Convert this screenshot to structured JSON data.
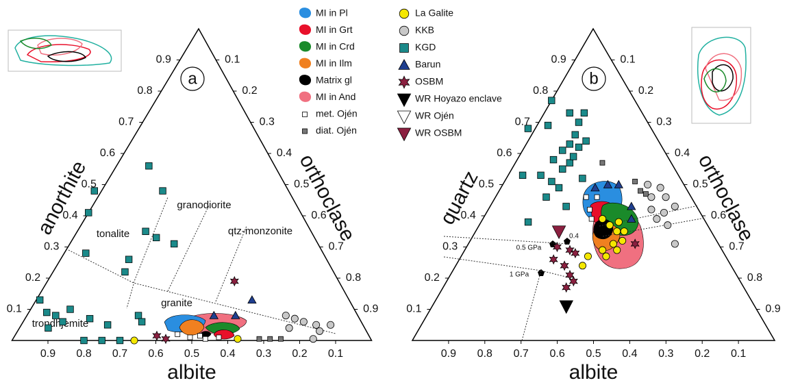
{
  "legend": [
    {
      "name": "MI in Pl",
      "color": "#2a8ee0",
      "marker": "blob"
    },
    {
      "name": "MI in Grt",
      "color": "#e8102a",
      "marker": "blob"
    },
    {
      "name": "MI in Crd",
      "color": "#1a8a2a",
      "marker": "blob"
    },
    {
      "name": "MI in Ilm",
      "color": "#f08020",
      "marker": "blob"
    },
    {
      "name": "Matrix gl",
      "color": "#000000",
      "marker": "blob"
    },
    {
      "name": "MI in And",
      "color": "#f07080",
      "marker": "blob"
    },
    {
      "name": "met. Ojén",
      "color": "#ffffff",
      "marker": "small-square"
    },
    {
      "name": "diat. Ojén",
      "color": "#777777",
      "marker": "small-square"
    },
    {
      "name": "La Galite",
      "color": "#f5e800",
      "marker": "circle"
    },
    {
      "name": "KKB",
      "color": "#c8c8c8",
      "marker": "circle"
    },
    {
      "name": "KGD",
      "color": "#1b8a8a",
      "marker": "square"
    },
    {
      "name": "Barun",
      "color": "#1f3f8f",
      "marker": "triangle"
    },
    {
      "name": "OSBM",
      "color": "#8b2040",
      "marker": "star"
    },
    {
      "name": "WR Hoyazo enclave",
      "color": "#000000",
      "marker": "down-triangle"
    },
    {
      "name": "WR Ojén",
      "color": "#ffffff",
      "marker": "down-triangle"
    },
    {
      "name": "WR OSBM",
      "color": "#8b2040",
      "marker": "down-triangle"
    }
  ],
  "chart_data": [
    {
      "type": "ternary",
      "panel": "a",
      "bottom_label": "albite",
      "left_label": "anorthite",
      "right_label": "orthoclase",
      "ticks": [
        0.1,
        0.2,
        0.3,
        0.4,
        0.5,
        0.6,
        0.7,
        0.8,
        0.9
      ],
      "field_labels": [
        "tonalite",
        "granodiorite",
        "qtz-monzonite",
        "granite",
        "trondhjemite"
      ],
      "series": [
        {
          "albite": [],
          "apex": []
        },
        {
          "albite": [],
          "apex": []
        },
        {
          "albite": [],
          "apex": []
        },
        {
          "albite": [],
          "apex": []
        },
        {
          "albite": [],
          "apex": []
        },
        {
          "albite": [],
          "apex": []
        },
        {
          "albite": [
            0.53,
            0.5,
            0.47,
            0.46,
            0.42
          ],
          "apex": [
            0.02,
            0.01,
            0.015,
            0.005,
            0.01
          ]
        },
        {
          "albite": [
            0.31,
            0.28,
            0.25
          ],
          "apex": [
            0.005,
            0.005,
            0.005
          ]
        },
        {
          "albite": [
            0.66,
            0.37
          ],
          "apex": [
            0,
            0.005
          ]
        },
        {
          "albite": [
            0.2,
            0.18,
            0.16,
            0.13,
            0.13,
            0.21,
            0.16,
            0.09
          ],
          "apex": [
            0.08,
            0.07,
            0.06,
            0.05,
            0.03,
            0.04,
            0.005,
            0.05
          ]
        },
        {
          "albite": [
            0.35,
            0.35,
            0.54,
            0.59,
            0.46,
            0.44,
            0.4,
            0.66,
            0.55,
            0.58,
            0.86,
            0.86,
            0.84,
            0.83,
            0.88,
            0.79,
            0.75,
            0.71,
            0.61,
            0.61,
            0.8,
            0.75,
            0.7
          ],
          "apex": [
            0.56,
            0.48,
            0.48,
            0.41,
            0.35,
            0.33,
            0.31,
            0.28,
            0.26,
            0.22,
            0.13,
            0.09,
            0.08,
            0.06,
            0.04,
            0.1,
            0.07,
            0.05,
            0.08,
            0.06,
            0,
            0,
            0
          ]
        },
        {
          "albite": [
            0.27,
            0.34,
            0.4
          ],
          "apex": [
            0.13,
            0.08,
            0.08
          ]
        },
        {
          "albite": [
            0.29,
            0.59,
            0.57
          ],
          "apex": [
            0.19,
            0.015,
            0.005
          ]
        },
        {
          "albite": [],
          "apex": []
        },
        {
          "albite": [],
          "apex": []
        },
        {
          "albite": [],
          "apex": []
        }
      ]
    },
    {
      "type": "ternary",
      "panel": "b",
      "bottom_label": "albite",
      "left_label": "quartz",
      "right_label": "orthoclase",
      "ticks": [
        0.1,
        0.2,
        0.3,
        0.4,
        0.5,
        0.6,
        0.7,
        0.8,
        0.9
      ],
      "field_labels": [
        "0.5 GPa",
        "1 GPa",
        "0.4"
      ],
      "series": [
        {
          "albite": [],
          "apex": []
        },
        {
          "albite": [],
          "apex": []
        },
        {
          "albite": [],
          "apex": []
        },
        {
          "albite": [],
          "apex": []
        },
        {
          "albite": [],
          "apex": []
        },
        {
          "albite": [],
          "apex": []
        },
        {
          "albite": [
            0.29,
            0.3,
            0.31,
            0.26
          ],
          "apex": [
            0.46,
            0.42,
            0.39,
            0.46
          ]
        },
        {
          "albite": [
            0.13,
            0.13,
            0.12,
            0.19
          ],
          "apex": [
            0.51,
            0.48,
            0.47,
            0.57
          ]
        },
        {
          "albite": [
            0.28,
            0.27,
            0.26,
            0.26,
            0.29,
            0.33,
            0.29,
            0.24,
            0.24,
            0.33,
            0.38,
            0.41
          ],
          "apex": [
            0.39,
            0.37,
            0.35,
            0.32,
            0.31,
            0.29,
            0.29,
            0.35,
            0.38,
            0.27,
            0.27,
            0.24
          ]
        },
        {
          "albite": [
            0.1,
            0.07,
            0.07,
            0.06,
            0.1,
            0.13,
            0.11,
            0.12,
            0.11,
            0.13
          ],
          "apex": [
            0.5,
            0.49,
            0.46,
            0.43,
            0.41,
            0.39,
            0.37,
            0.31,
            0.46,
            0.42
          ]
        },
        {
          "albite": [
            0.23,
            0.2,
            0.16,
            0.19,
            0.22,
            0.2,
            0.25,
            0.28,
            0.23,
            0.28,
            0.34,
            0.32,
            0.31,
            0.28,
            0.38,
            0.36,
            0.35,
            0.4,
            0.36,
            0.49,
            0.43,
            0.27,
            0.26
          ],
          "apex": [
            0.77,
            0.73,
            0.73,
            0.7,
            0.66,
            0.64,
            0.63,
            0.61,
            0.62,
            0.69,
            0.68,
            0.58,
            0.55,
            0.57,
            0.53,
            0.51,
            0.49,
            0.46,
            0.43,
            0.38,
            0.53,
            0.52,
            0.59
          ]
        },
        {
          "albite": [
            0.25,
            0.21,
            0.18,
            0.2,
            0.18
          ],
          "apex": [
            0.49,
            0.5,
            0.5,
            0.39,
            0.43
          ]
        },
        {
          "albite": [
            0.45,
            0.42,
            0.48,
            0.46,
            0.41,
            0.46,
            0.49,
            0.46,
            0.23
          ],
          "apex": [
            0.3,
            0.29,
            0.26,
            0.24,
            0.28,
            0.19,
            0.17,
            0.21,
            0.31
          ]
        },
        {
          "albite": [
            0.52
          ],
          "apex": [
            0.11
          ]
        },
        {
          "albite": [],
          "apex": []
        },
        {
          "albite": [
            0.42
          ],
          "apex": [
            0.35
          ]
        }
      ]
    }
  ]
}
